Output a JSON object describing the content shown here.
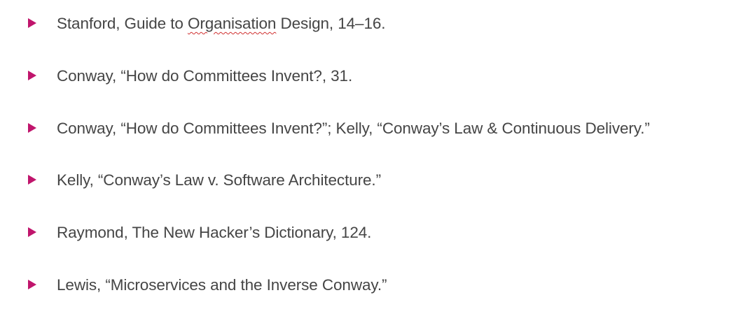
{
  "footnotes": [
    {
      "before": "Stanford, Guide to ",
      "marked": "Organisation",
      "after": " Design, 14–16."
    },
    {
      "before": "Conway, “How do Committees Invent?, 31.",
      "marked": "",
      "after": ""
    },
    {
      "before": "Conway, “How do Committees Invent?”; Kelly, “Conway’s Law & Continuous Delivery.”",
      "marked": "",
      "after": ""
    },
    {
      "before": "Kelly, “Conway’s Law v. Software Architecture.”",
      "marked": "",
      "after": ""
    },
    {
      "before": "Raymond, The New Hacker’s Dictionary, 124.",
      "marked": "",
      "after": ""
    },
    {
      "before": "Lewis, “Microservices and the Inverse Conway.”",
      "marked": "",
      "after": ""
    }
  ],
  "colors": {
    "bullet": "#c0156c",
    "text": "#454545",
    "spellcheck_underline": "#d03030"
  },
  "icons": {
    "bullet": "triangle-bullet-icon"
  }
}
